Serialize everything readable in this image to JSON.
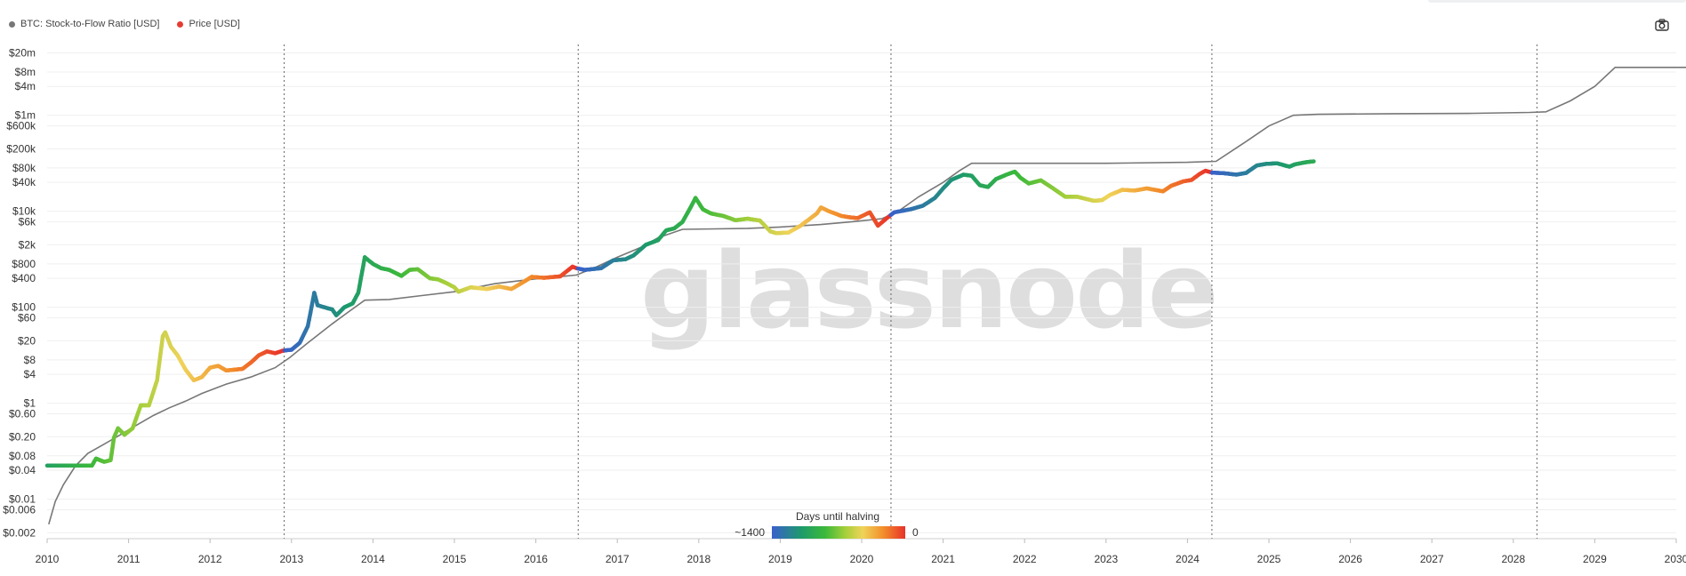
{
  "legend": {
    "s2f_label": "BTC: Stock-to-Flow Ratio [USD]",
    "price_label": "Price [USD]",
    "s2f_color": "#777777",
    "price_color": "#e63c32"
  },
  "watermark": "glassnode",
  "colorbar": {
    "title": "Days until halving",
    "min_label": "~1400",
    "max_label": "0",
    "colors": [
      "#3a5fcd",
      "#1d9a6c",
      "#3cb93a",
      "#a4cf3a",
      "#f0d35a",
      "#f28c2a",
      "#e8312a"
    ]
  },
  "chart_data": {
    "type": "line",
    "y_scale": "log",
    "ylim": [
      0.0015,
      30000000
    ],
    "xlim": [
      2010.0,
      2030.0
    ],
    "y_ticks": [
      {
        "value": 20000000,
        "label": "$20m"
      },
      {
        "value": 8000000,
        "label": "$8m"
      },
      {
        "value": 4000000,
        "label": "$4m"
      },
      {
        "value": 1000000,
        "label": "$1m"
      },
      {
        "value": 600000,
        "label": "$600k"
      },
      {
        "value": 200000,
        "label": "$200k"
      },
      {
        "value": 80000,
        "label": "$80k"
      },
      {
        "value": 40000,
        "label": "$40k"
      },
      {
        "value": 10000,
        "label": "$10k"
      },
      {
        "value": 6000,
        "label": "$6k"
      },
      {
        "value": 2000,
        "label": "$2k"
      },
      {
        "value": 800,
        "label": "$800"
      },
      {
        "value": 400,
        "label": "$400"
      },
      {
        "value": 100,
        "label": "$100"
      },
      {
        "value": 60,
        "label": "$60"
      },
      {
        "value": 20,
        "label": "$20"
      },
      {
        "value": 8,
        "label": "$8"
      },
      {
        "value": 4,
        "label": "$4"
      },
      {
        "value": 1,
        "label": "$1"
      },
      {
        "value": 0.6,
        "label": "$0.60"
      },
      {
        "value": 0.2,
        "label": "$0.20"
      },
      {
        "value": 0.08,
        "label": "$0.08"
      },
      {
        "value": 0.04,
        "label": "$0.04"
      },
      {
        "value": 0.01,
        "label": "$0.01"
      },
      {
        "value": 0.006,
        "label": "$0.006"
      },
      {
        "value": 0.002,
        "label": "$0.002"
      }
    ],
    "x_ticks": [
      "2010",
      "2011",
      "2012",
      "2013",
      "2014",
      "2015",
      "2016",
      "2017",
      "2018",
      "2019",
      "2020",
      "2021",
      "2022",
      "2023",
      "2024",
      "2025",
      "2026",
      "2027",
      "2028",
      "2029",
      "2030"
    ],
    "halvings": [
      2012.91,
      2016.52,
      2020.36,
      2024.3,
      2028.29
    ],
    "series": [
      {
        "name": "BTC: Stock-to-Flow Ratio [USD]",
        "color": "#777777",
        "points": [
          [
            2010.02,
            0.003
          ],
          [
            2010.1,
            0.009
          ],
          [
            2010.2,
            0.02
          ],
          [
            2010.35,
            0.05
          ],
          [
            2010.5,
            0.09
          ],
          [
            2010.7,
            0.14
          ],
          [
            2010.9,
            0.22
          ],
          [
            2011.1,
            0.35
          ],
          [
            2011.3,
            0.55
          ],
          [
            2011.5,
            0.8
          ],
          [
            2011.7,
            1.1
          ],
          [
            2011.9,
            1.6
          ],
          [
            2012.2,
            2.5
          ],
          [
            2012.5,
            3.5
          ],
          [
            2012.8,
            5.5
          ],
          [
            2012.98,
            9
          ],
          [
            2013.2,
            18
          ],
          [
            2013.5,
            45
          ],
          [
            2013.7,
            80
          ],
          [
            2013.9,
            140
          ],
          [
            2014.2,
            145
          ],
          [
            2014.6,
            175
          ],
          [
            2015.0,
            210
          ],
          [
            2015.5,
            310
          ],
          [
            2016.0,
            390
          ],
          [
            2016.5,
            470
          ],
          [
            2016.75,
            700
          ],
          [
            2017.0,
            1100
          ],
          [
            2017.3,
            1800
          ],
          [
            2017.5,
            2800
          ],
          [
            2017.8,
            4200
          ],
          [
            2018.2,
            4300
          ],
          [
            2018.6,
            4400
          ],
          [
            2019.0,
            4700
          ],
          [
            2019.5,
            5300
          ],
          [
            2019.9,
            6100
          ],
          [
            2020.25,
            7000
          ],
          [
            2020.45,
            10000
          ],
          [
            2020.7,
            20000
          ],
          [
            2021.0,
            40000
          ],
          [
            2021.2,
            70000
          ],
          [
            2021.35,
            100000
          ],
          [
            2022.0,
            100000
          ],
          [
            2023.0,
            100000
          ],
          [
            2024.0,
            105000
          ],
          [
            2024.35,
            110000
          ],
          [
            2024.7,
            270000
          ],
          [
            2025.0,
            600000
          ],
          [
            2025.3,
            1000000
          ],
          [
            2025.6,
            1050000
          ],
          [
            2026.5,
            1080000
          ],
          [
            2027.5,
            1100000
          ],
          [
            2028.2,
            1150000
          ],
          [
            2028.4,
            1180000
          ],
          [
            2028.7,
            2000000
          ],
          [
            2029.0,
            4000000
          ],
          [
            2029.25,
            10000000
          ],
          [
            2030.15,
            10000000
          ]
        ]
      },
      {
        "name": "Price [USD]",
        "color": "#e63c32",
        "points": [
          [
            2010.0,
            0.05
          ],
          [
            2010.3,
            0.05
          ],
          [
            2010.55,
            0.05
          ],
          [
            2010.6,
            0.07
          ],
          [
            2010.7,
            0.06
          ],
          [
            2010.78,
            0.065
          ],
          [
            2010.82,
            0.19
          ],
          [
            2010.87,
            0.3
          ],
          [
            2010.95,
            0.22
          ],
          [
            2011.05,
            0.3
          ],
          [
            2011.15,
            0.9
          ],
          [
            2011.25,
            0.9
          ],
          [
            2011.35,
            3
          ],
          [
            2011.42,
            25
          ],
          [
            2011.45,
            30
          ],
          [
            2011.52,
            15
          ],
          [
            2011.6,
            10
          ],
          [
            2011.7,
            5
          ],
          [
            2011.8,
            3
          ],
          [
            2011.9,
            3.5
          ],
          [
            2012.0,
            5.5
          ],
          [
            2012.1,
            6
          ],
          [
            2012.2,
            4.8
          ],
          [
            2012.3,
            5
          ],
          [
            2012.4,
            5.2
          ],
          [
            2012.5,
            7
          ],
          [
            2012.6,
            10
          ],
          [
            2012.7,
            12
          ],
          [
            2012.8,
            11
          ],
          [
            2012.9,
            12.5
          ],
          [
            2013.0,
            13
          ],
          [
            2013.1,
            18
          ],
          [
            2013.2,
            40
          ],
          [
            2013.28,
            200
          ],
          [
            2013.32,
            110
          ],
          [
            2013.4,
            100
          ],
          [
            2013.5,
            90
          ],
          [
            2013.55,
            68
          ],
          [
            2013.65,
            100
          ],
          [
            2013.75,
            120
          ],
          [
            2013.82,
            200
          ],
          [
            2013.9,
            1100
          ],
          [
            2014.0,
            800
          ],
          [
            2014.1,
            650
          ],
          [
            2014.2,
            600
          ],
          [
            2014.35,
            450
          ],
          [
            2014.45,
            600
          ],
          [
            2014.55,
            620
          ],
          [
            2014.7,
            400
          ],
          [
            2014.8,
            380
          ],
          [
            2014.9,
            320
          ],
          [
            2015.0,
            260
          ],
          [
            2015.05,
            210
          ],
          [
            2015.2,
            260
          ],
          [
            2015.4,
            240
          ],
          [
            2015.55,
            270
          ],
          [
            2015.7,
            240
          ],
          [
            2015.8,
            300
          ],
          [
            2015.95,
            430
          ],
          [
            2016.1,
            410
          ],
          [
            2016.3,
            440
          ],
          [
            2016.45,
            700
          ],
          [
            2016.5,
            650
          ],
          [
            2016.6,
            600
          ],
          [
            2016.8,
            650
          ],
          [
            2016.95,
            950
          ],
          [
            2017.1,
            1000
          ],
          [
            2017.2,
            1200
          ],
          [
            2017.35,
            2000
          ],
          [
            2017.5,
            2500
          ],
          [
            2017.6,
            4000
          ],
          [
            2017.7,
            4400
          ],
          [
            2017.8,
            6000
          ],
          [
            2017.9,
            12000
          ],
          [
            2017.96,
            19000
          ],
          [
            2018.05,
            11000
          ],
          [
            2018.15,
            9000
          ],
          [
            2018.3,
            8000
          ],
          [
            2018.45,
            6500
          ],
          [
            2018.6,
            7000
          ],
          [
            2018.75,
            6400
          ],
          [
            2018.88,
            3800
          ],
          [
            2018.95,
            3500
          ],
          [
            2019.1,
            3600
          ],
          [
            2019.25,
            5000
          ],
          [
            2019.45,
            9000
          ],
          [
            2019.5,
            12000
          ],
          [
            2019.6,
            10000
          ],
          [
            2019.75,
            8000
          ],
          [
            2019.85,
            7500
          ],
          [
            2019.95,
            7200
          ],
          [
            2020.1,
            9500
          ],
          [
            2020.2,
            5000
          ],
          [
            2020.3,
            7000
          ],
          [
            2020.4,
            9500
          ],
          [
            2020.6,
            11000
          ],
          [
            2020.75,
            13000
          ],
          [
            2020.9,
            19000
          ],
          [
            2021.0,
            30000
          ],
          [
            2021.1,
            45000
          ],
          [
            2021.25,
            58000
          ],
          [
            2021.35,
            55000
          ],
          [
            2021.45,
            35000
          ],
          [
            2021.55,
            32000
          ],
          [
            2021.65,
            47000
          ],
          [
            2021.8,
            60000
          ],
          [
            2021.88,
            67000
          ],
          [
            2021.95,
            50000
          ],
          [
            2022.05,
            38000
          ],
          [
            2022.2,
            44000
          ],
          [
            2022.35,
            30000
          ],
          [
            2022.5,
            20000
          ],
          [
            2022.65,
            20000
          ],
          [
            2022.85,
            16500
          ],
          [
            2022.95,
            17000
          ],
          [
            2023.05,
            22000
          ],
          [
            2023.2,
            28000
          ],
          [
            2023.35,
            27000
          ],
          [
            2023.5,
            30000
          ],
          [
            2023.7,
            26000
          ],
          [
            2023.8,
            34000
          ],
          [
            2023.95,
            42000
          ],
          [
            2024.05,
            45000
          ],
          [
            2024.15,
            60000
          ],
          [
            2024.22,
            70000
          ],
          [
            2024.3,
            64000
          ],
          [
            2024.45,
            62000
          ],
          [
            2024.6,
            58000
          ],
          [
            2024.72,
            63000
          ],
          [
            2024.85,
            90000
          ],
          [
            2024.96,
            97000
          ],
          [
            2025.1,
            100000
          ],
          [
            2025.25,
            85000
          ],
          [
            2025.32,
            95000
          ],
          [
            2025.45,
            105000
          ],
          [
            2025.55,
            110000
          ]
        ]
      }
    ]
  }
}
